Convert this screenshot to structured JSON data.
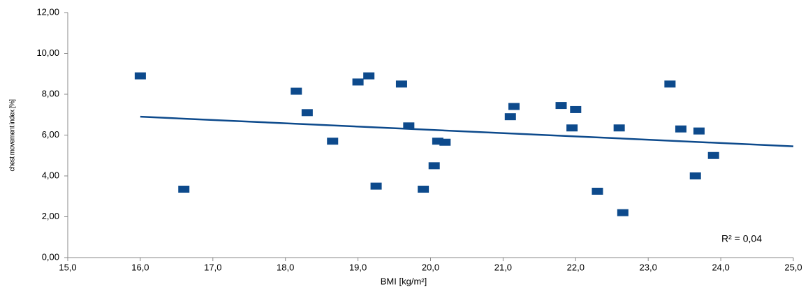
{
  "chart_data": {
    "type": "scatter",
    "xlabel": "BMI [kg/m²]",
    "ylabel": "chest movement index [%]",
    "annotation": "R² = 0,04",
    "color": "#0d4a8c",
    "x": [
      16.0,
      16.6,
      18.15,
      18.3,
      18.65,
      19.0,
      19.15,
      19.25,
      19.6,
      19.7,
      19.9,
      20.05,
      20.1,
      20.2,
      21.1,
      21.15,
      21.8,
      21.95,
      22.0,
      22.3,
      22.6,
      22.65,
      23.3,
      23.45,
      23.7,
      23.65,
      23.9
    ],
    "values": [
      8.9,
      3.35,
      8.15,
      7.1,
      5.7,
      8.6,
      8.9,
      3.5,
      8.5,
      6.45,
      3.35,
      4.5,
      5.7,
      5.65,
      6.9,
      7.4,
      7.45,
      6.35,
      7.25,
      3.25,
      6.35,
      2.2,
      8.5,
      6.3,
      6.2,
      4.0,
      5.0
    ],
    "trendline": {
      "x": [
        16.0,
        25.0
      ],
      "values": [
        6.9,
        5.45
      ]
    },
    "xlim": [
      15,
      25
    ],
    "xticks": [
      {
        "value": 15,
        "label": "15,0"
      },
      {
        "value": 16,
        "label": "16,0"
      },
      {
        "value": 17,
        "label": "17,0"
      },
      {
        "value": 18,
        "label": "18,0"
      },
      {
        "value": 19,
        "label": "19,0"
      },
      {
        "value": 20,
        "label": "20,0"
      },
      {
        "value": 21,
        "label": "21,0"
      },
      {
        "value": 22,
        "label": "22,0"
      },
      {
        "value": 23,
        "label": "23,0"
      },
      {
        "value": 24,
        "label": "24,0"
      },
      {
        "value": 25,
        "label": "25,0"
      }
    ],
    "ylim": [
      0,
      12
    ],
    "yticks": [
      {
        "value": 0,
        "label": "0,00"
      },
      {
        "value": 2,
        "label": "2,00"
      },
      {
        "value": 4,
        "label": "4,00"
      },
      {
        "value": 6,
        "label": "6,00"
      },
      {
        "value": 8,
        "label": "8,00"
      },
      {
        "value": 10,
        "label": "10,00"
      },
      {
        "value": 12,
        "label": "12,00"
      }
    ]
  }
}
